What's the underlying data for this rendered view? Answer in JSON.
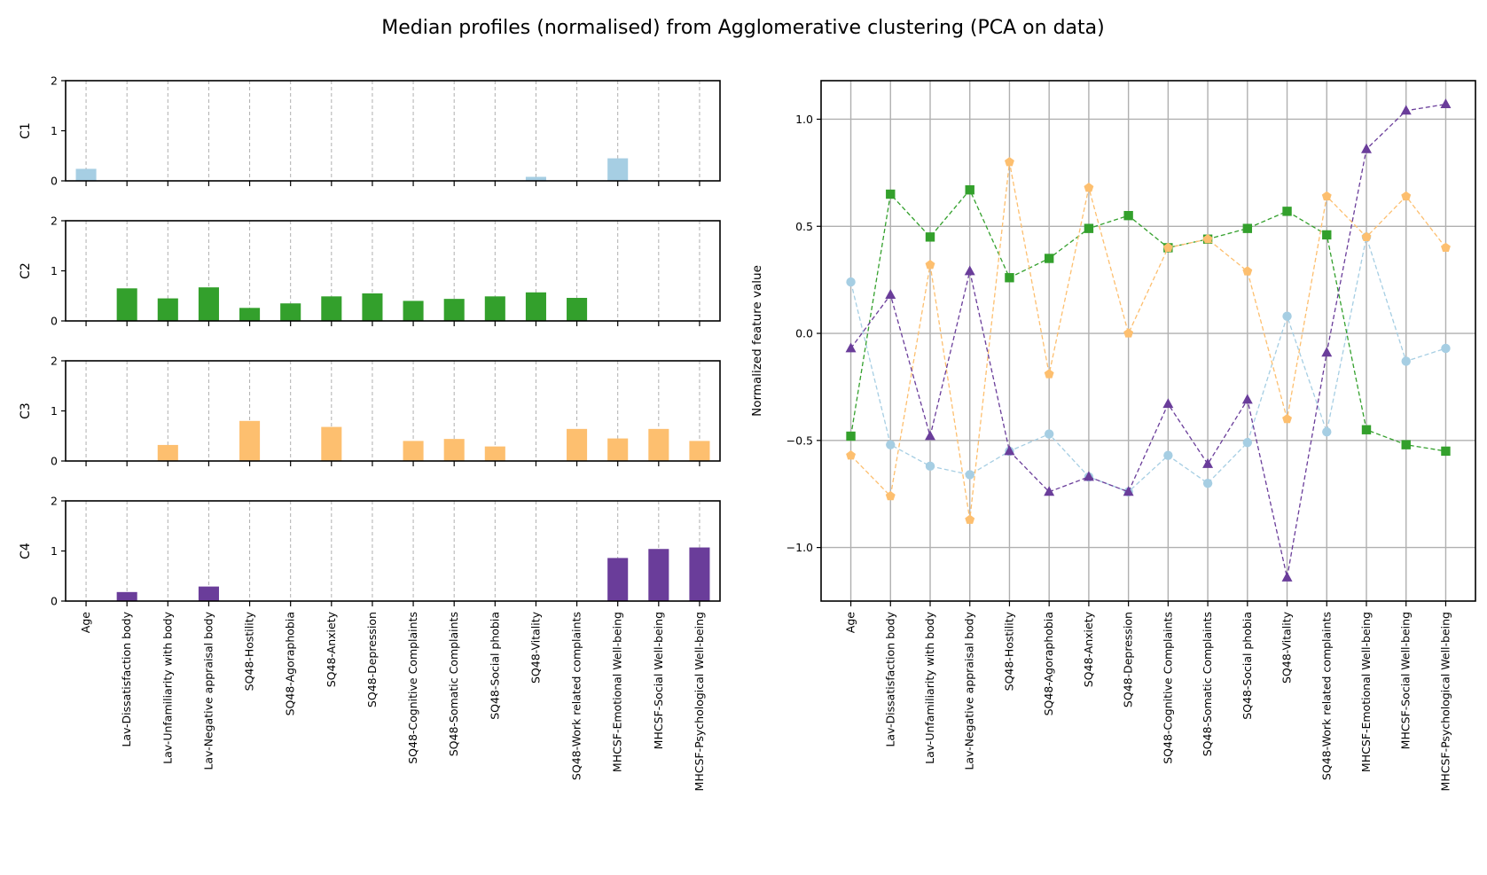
{
  "title": "Median profiles (normalised) from Agglomerative clustering (PCA on data)",
  "features": [
    "Age",
    "Lav-Dissatisfaction body",
    "Lav-Unfamiliarity with body",
    "Lav-Negative appraisal body",
    "SQ48-Hostility",
    "SQ48-Agoraphobia",
    "SQ48-Anxiety",
    "SQ48-Depression",
    "SQ48-Cognitive Complaints",
    "SQ48-Somatic Complaints",
    "SQ48-Social phobia",
    "SQ48-Vitality",
    "SQ48-Work related complaints",
    "MHCSF-Emotional Well-being",
    "MHCSF-Social Well-being",
    "MHCSF-Psychological Well-being"
  ],
  "chart_data": [
    {
      "type": "bar",
      "panel": "left",
      "categories": [
        "Age",
        "Lav-Dissatisfaction body",
        "Lav-Unfamiliarity with body",
        "Lav-Negative appraisal body",
        "SQ48-Hostility",
        "SQ48-Agoraphobia",
        "SQ48-Anxiety",
        "SQ48-Depression",
        "SQ48-Cognitive Complaints",
        "SQ48-Somatic Complaints",
        "SQ48-Social phobia",
        "SQ48-Vitality",
        "SQ48-Work related complaints",
        "MHCSF-Emotional Well-being",
        "MHCSF-Social Well-being",
        "MHCSF-Psychological Well-being"
      ],
      "ylim": [
        0,
        2
      ],
      "yticks": [
        "0",
        "1",
        "2"
      ],
      "grid": "x dashed",
      "series": [
        {
          "name": "C1",
          "color": "#a6cee3",
          "values": [
            0.24,
            0,
            0,
            0,
            0,
            0,
            0,
            0,
            0,
            0,
            0,
            0.08,
            0,
            0.45,
            0,
            0
          ]
        },
        {
          "name": "C2",
          "color": "#33a02c",
          "values": [
            0,
            0.65,
            0.45,
            0.67,
            0.26,
            0.35,
            0.49,
            0.55,
            0.4,
            0.44,
            0.49,
            0.57,
            0.46,
            0,
            0,
            0
          ]
        },
        {
          "name": "C3",
          "color": "#fdbf6f",
          "values": [
            0,
            0,
            0.32,
            0,
            0.8,
            0,
            0.68,
            0,
            0.4,
            0.44,
            0.29,
            0,
            0.64,
            0.45,
            0.64,
            0.4
          ]
        },
        {
          "name": "C4",
          "color": "#6a3d9a",
          "values": [
            0,
            0.18,
            0,
            0.29,
            0,
            0,
            0,
            0,
            0,
            0,
            0,
            0,
            0,
            0.86,
            1.04,
            1.07
          ]
        }
      ]
    },
    {
      "type": "line",
      "panel": "right",
      "categories": [
        "Age",
        "Lav-Dissatisfaction body",
        "Lav-Unfamiliarity with body",
        "Lav-Negative appraisal body",
        "SQ48-Hostility",
        "SQ48-Agoraphobia",
        "SQ48-Anxiety",
        "SQ48-Depression",
        "SQ48-Cognitive Complaints",
        "SQ48-Somatic Complaints",
        "SQ48-Social phobia",
        "SQ48-Vitality",
        "SQ48-Work related complaints",
        "MHCSF-Emotional Well-being",
        "MHCSF-Social Well-being",
        "MHCSF-Psychological Well-being"
      ],
      "ylabel": "Normalized feature value",
      "ylim": [
        -1.25,
        1.18
      ],
      "yticks": [
        -1.0,
        -0.5,
        0.0,
        0.5,
        1.0
      ],
      "ytick_labels": [
        "−1.0",
        "−0.5",
        "0.0",
        "0.5",
        "1.0"
      ],
      "grid": "both",
      "series": [
        {
          "color": "#a6cee3",
          "marker": "circle",
          "values": [
            0.24,
            -0.52,
            -0.62,
            -0.66,
            -0.55,
            -0.47,
            -0.67,
            -0.74,
            -0.57,
            -0.7,
            -0.51,
            0.08,
            -0.46,
            0.45,
            -0.13,
            -0.07
          ]
        },
        {
          "color": "#33a02c",
          "marker": "square",
          "values": [
            -0.48,
            0.65,
            0.45,
            0.67,
            0.26,
            0.35,
            0.49,
            0.55,
            0.4,
            0.44,
            0.49,
            0.57,
            0.46,
            -0.45,
            -0.52,
            -0.55
          ]
        },
        {
          "color": "#fdbf6f",
          "marker": "pentagon",
          "values": [
            -0.57,
            -0.76,
            0.32,
            -0.87,
            0.8,
            -0.19,
            0.68,
            0.0,
            0.4,
            0.44,
            0.29,
            -0.4,
            0.64,
            0.45,
            0.64,
            0.4
          ]
        },
        {
          "color": "#6a3d9a",
          "marker": "triangle",
          "values": [
            -0.07,
            0.18,
            -0.48,
            0.29,
            -0.55,
            -0.74,
            -0.67,
            -0.74,
            -0.33,
            -0.61,
            -0.31,
            -1.14,
            -0.09,
            0.86,
            1.04,
            1.07
          ]
        }
      ]
    }
  ]
}
